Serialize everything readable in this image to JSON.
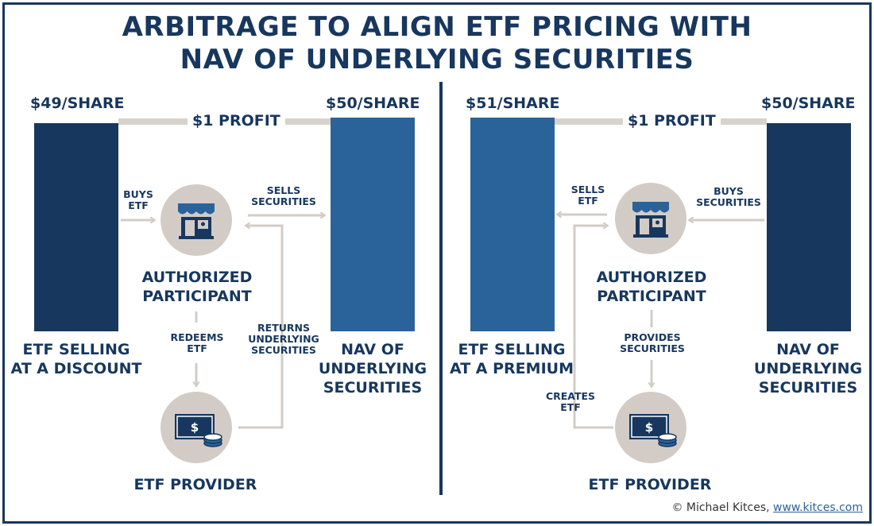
{
  "title": {
    "line1": "ARBITRAGE TO ALIGN ETF PRICING WITH",
    "line2": "NAV OF UNDERLYING SECURITIES"
  },
  "left": {
    "etf_price": "$49/SHARE",
    "nav_price": "$50/SHARE",
    "profit": "$1 PROFIT",
    "etf_caption_1": "ETF SELLING",
    "etf_caption_2": "AT A DISCOUNT",
    "nav_caption_1": "NAV OF",
    "nav_caption_2": "UNDERLYING",
    "nav_caption_3": "SECURITIES",
    "buys_1": "BUYS",
    "buys_2": "ETF",
    "sells_1": "SELLS",
    "sells_2": "SECURITIES",
    "ap_1": "AUTHORIZED",
    "ap_2": "PARTICIPANT",
    "redeems_1": "REDEEMS",
    "redeems_2": "ETF",
    "returns_1": "RETURNS",
    "returns_2": "UNDERLYING",
    "returns_3": "SECURITIES",
    "provider": "ETF PROVIDER"
  },
  "right": {
    "etf_price": "$51/SHARE",
    "nav_price": "$50/SHARE",
    "profit": "$1 PROFIT",
    "etf_caption_1": "ETF SELLING",
    "etf_caption_2": "AT A PREMIUM",
    "nav_caption_1": "NAV OF",
    "nav_caption_2": "UNDERLYING",
    "nav_caption_3": "SECURITIES",
    "sells_1": "SELLS",
    "sells_2": "ETF",
    "buys_1": "BUYS",
    "buys_2": "SECURITIES",
    "ap_1": "AUTHORIZED",
    "ap_2": "PARTICIPANT",
    "provides_1": "PROVIDES",
    "provides_2": "SECURITIES",
    "creates_1": "CREATES",
    "creates_2": "ETF",
    "provider": "ETF PROVIDER"
  },
  "credit": {
    "author": "© Michael Kitces,",
    "link": "www.kitces.com"
  },
  "icons": {
    "authorized_participant": "storefront-icon",
    "etf_provider": "dollar-bill-coins-icon"
  },
  "colors": {
    "navy": "#17375e",
    "blue": "#2a6399",
    "grey": "#d3ccc6",
    "connector": "#d8d2cc"
  }
}
